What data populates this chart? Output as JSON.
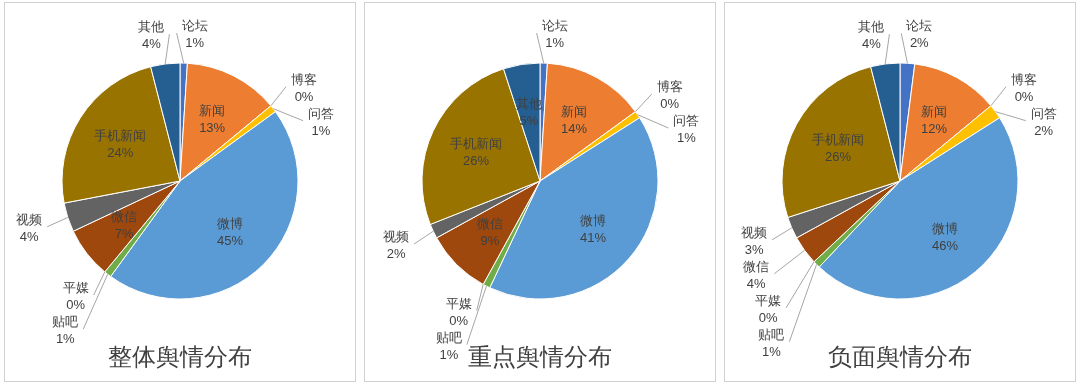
{
  "chart_data": [
    {
      "type": "pie",
      "title": "整体舆情分布",
      "categories": [
        "论坛",
        "新闻",
        "博客",
        "问答",
        "微博",
        "贴吧",
        "平媒",
        "微信",
        "视频",
        "手机新闻",
        "其他"
      ],
      "values": [
        1,
        13,
        0,
        1,
        45,
        1,
        0,
        7,
        4,
        24,
        4
      ],
      "value_labels": [
        "1%",
        "13%",
        "0%",
        "1%",
        "45%",
        "1%",
        "0%",
        "7%",
        "4%",
        "24%",
        "4%"
      ],
      "colors": [
        "#4472c4",
        "#ed7d31",
        null,
        "#ffc000",
        "#5b9bd5",
        "#70ad47",
        null,
        "#9e480e",
        "#636363",
        "#997300",
        "#255e91"
      ]
    },
    {
      "type": "pie",
      "title": "重点舆情分布",
      "categories": [
        "论坛",
        "新闻",
        "博客",
        "问答",
        "微博",
        "贴吧",
        "平媒",
        "微信",
        "视频",
        "手机新闻",
        "其他"
      ],
      "values": [
        1,
        14,
        0,
        1,
        41,
        1,
        0,
        9,
        2,
        26,
        5
      ],
      "value_labels": [
        "1%",
        "14%",
        "0%",
        "1%",
        "41%",
        "1%",
        "0%",
        "9%",
        "2%",
        "26%",
        "5%"
      ],
      "colors": [
        "#4472c4",
        "#ed7d31",
        null,
        "#ffc000",
        "#5b9bd5",
        "#70ad47",
        null,
        "#9e480e",
        "#636363",
        "#997300",
        "#255e91"
      ]
    },
    {
      "type": "pie",
      "title": "负面舆情分布",
      "categories": [
        "论坛",
        "新闻",
        "博客",
        "问答",
        "微博",
        "贴吧",
        "平媒",
        "微信",
        "视频",
        "手机新闻",
        "其他"
      ],
      "values": [
        2,
        12,
        0,
        2,
        46,
        1,
        0,
        4,
        3,
        26,
        4
      ],
      "value_labels": [
        "2%",
        "12%",
        "0%",
        "2%",
        "46%",
        "1%",
        "0%",
        "4%",
        "3%",
        "26%",
        "4%"
      ],
      "colors": [
        "#4472c4",
        "#ed7d31",
        null,
        "#ffc000",
        "#5b9bd5",
        "#70ad47",
        null,
        "#9e480e",
        "#636363",
        "#997300",
        "#255e91"
      ]
    }
  ]
}
